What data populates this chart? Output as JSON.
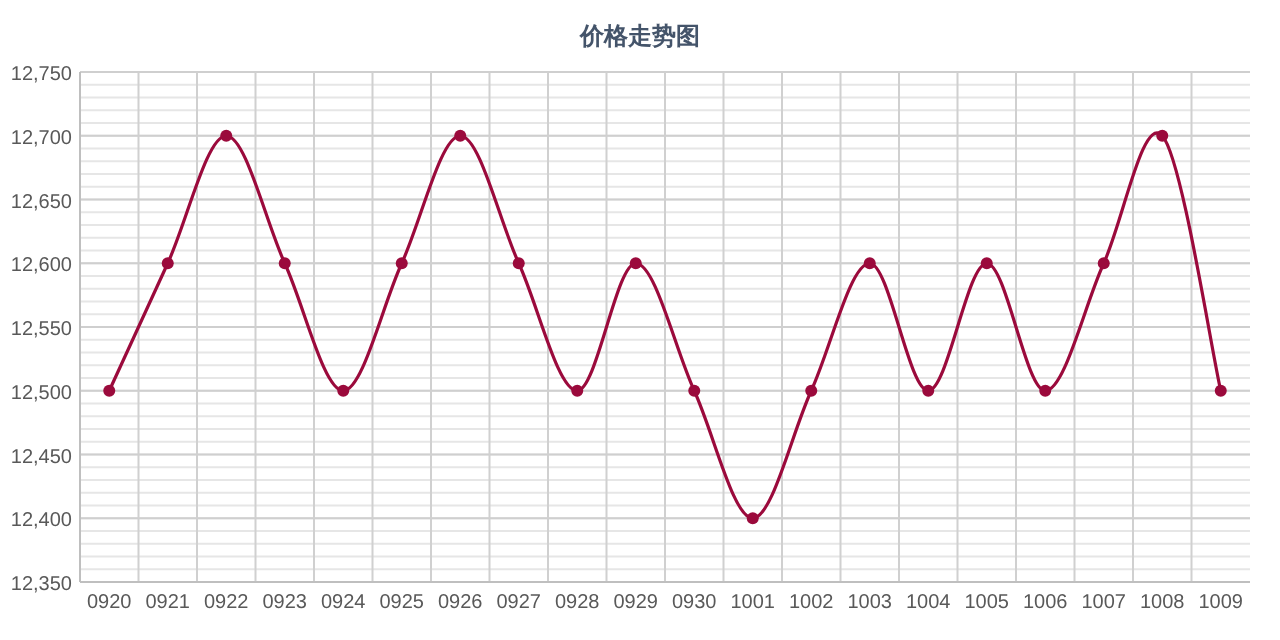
{
  "chart_data": {
    "type": "line",
    "title": "价格走势图",
    "categories": [
      "0920",
      "0921",
      "0922",
      "0923",
      "0924",
      "0925",
      "0926",
      "0927",
      "0928",
      "0929",
      "0930",
      "1001",
      "1002",
      "1003",
      "1004",
      "1005",
      "1006",
      "1007",
      "1008",
      "1009"
    ],
    "series": [
      {
        "color": "#9b0a3c",
        "values": [
          12500,
          12600,
          12700,
          12600,
          12500,
          12600,
          12700,
          12600,
          12500,
          12600,
          12500,
          12400,
          12500,
          12600,
          12500,
          12600,
          12500,
          12600,
          12700,
          12500
        ]
      }
    ],
    "ylim": [
      12350,
      12750
    ],
    "yticks": [
      {
        "value": 12350,
        "label": "12,350"
      },
      {
        "value": 12400,
        "label": "12,400"
      },
      {
        "value": 12450,
        "label": "12,450"
      },
      {
        "value": 12500,
        "label": "12,500"
      },
      {
        "value": 12550,
        "label": "12,550"
      },
      {
        "value": 12600,
        "label": "12,600"
      },
      {
        "value": 12650,
        "label": "12,650"
      },
      {
        "value": 12700,
        "label": "12,700"
      },
      {
        "value": 12750,
        "label": "12,750"
      }
    ],
    "grid": true,
    "marker": "circle",
    "line_style": "solid"
  }
}
